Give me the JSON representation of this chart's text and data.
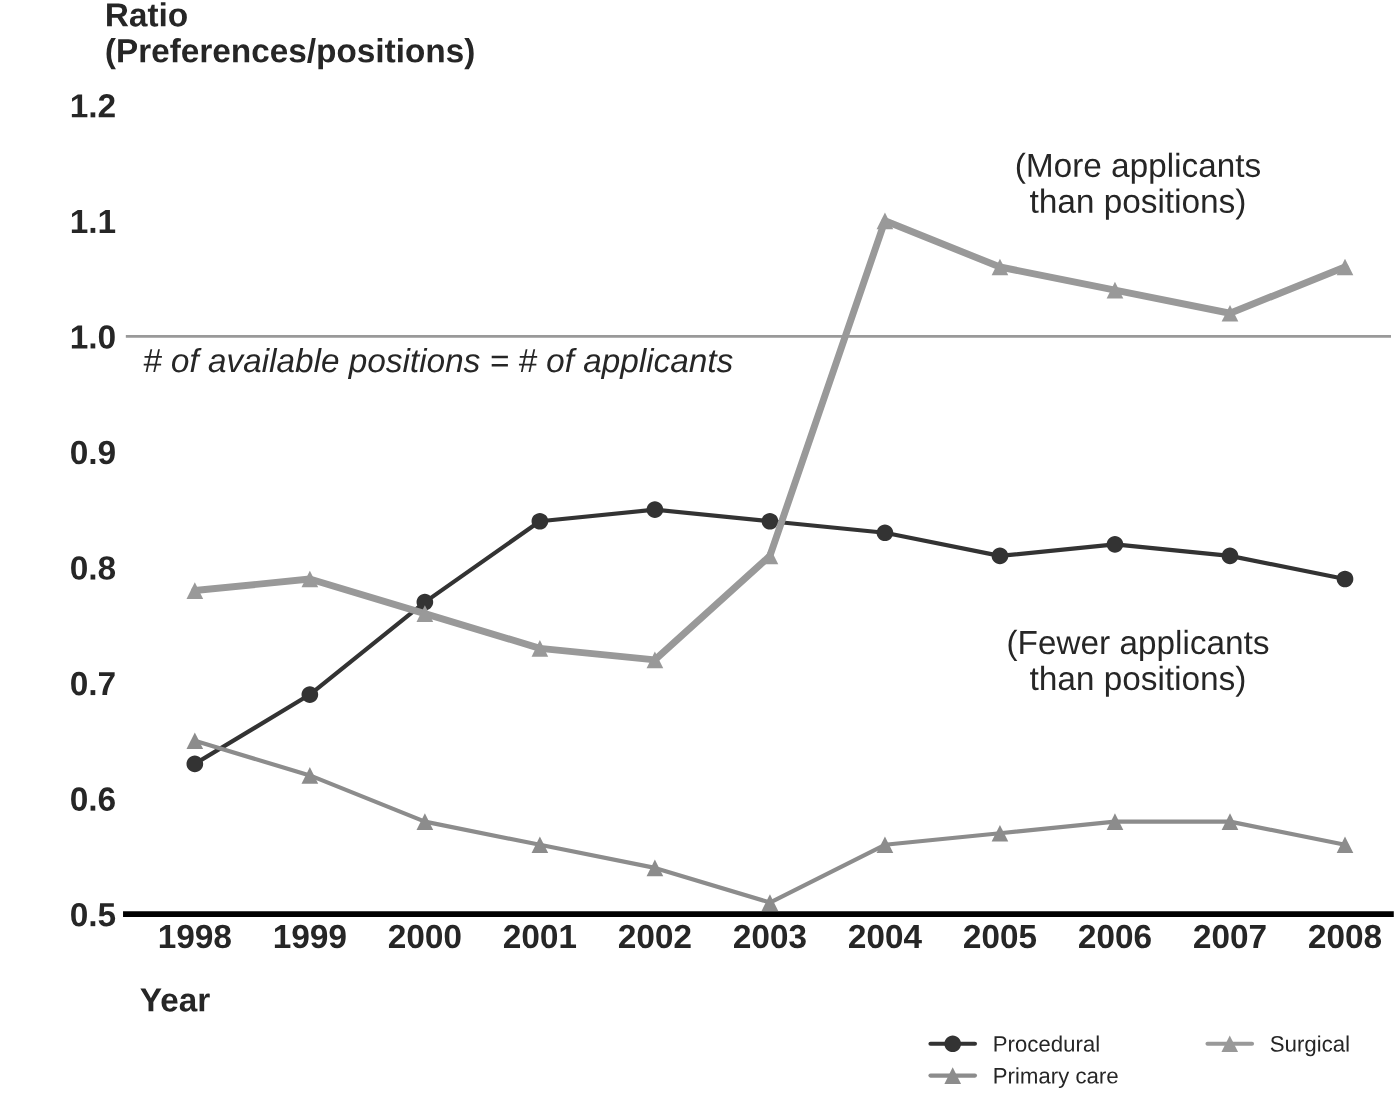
{
  "chart_data": {
    "type": "line",
    "ylabel": "Ratio\n(Preferences/positions)",
    "xlabel": "Year",
    "categories": [
      "1998",
      "1999",
      "2000",
      "2001",
      "2002",
      "2003",
      "2004",
      "2005",
      "2006",
      "2007",
      "2008"
    ],
    "series": [
      {
        "name": "Procedural",
        "color": "#333333",
        "marker": "circle",
        "values": [
          0.63,
          0.69,
          0.77,
          0.84,
          0.85,
          0.84,
          0.83,
          0.81,
          0.82,
          0.81,
          0.79
        ]
      },
      {
        "name": "Surgical",
        "color": "#999999",
        "marker": "triangle",
        "values": [
          0.78,
          0.79,
          0.76,
          0.73,
          0.72,
          0.81,
          1.1,
          1.06,
          1.04,
          1.02,
          1.06
        ]
      },
      {
        "name": "Primary care",
        "color": "#8c8c8c",
        "marker": "triangle",
        "values": [
          0.65,
          0.62,
          0.58,
          0.56,
          0.54,
          0.51,
          0.56,
          0.57,
          0.58,
          0.58,
          0.56
        ]
      }
    ],
    "ylim": [
      0.5,
      1.2
    ],
    "yticks": [
      0.5,
      0.6,
      0.7,
      0.8,
      0.9,
      {
        "value": 1.0,
        "label": "1.0"
      },
      1.1,
      1.2
    ],
    "ref_lines": [
      {
        "axis": "y",
        "value": 1.0,
        "label": "# of available positions = # of applicants",
        "color": "#999999"
      }
    ],
    "annotations": [
      "(More applicants\nthan positions)",
      "(Fewer applicants\nthan positions)"
    ],
    "legend": "bottom right",
    "grid": false
  }
}
